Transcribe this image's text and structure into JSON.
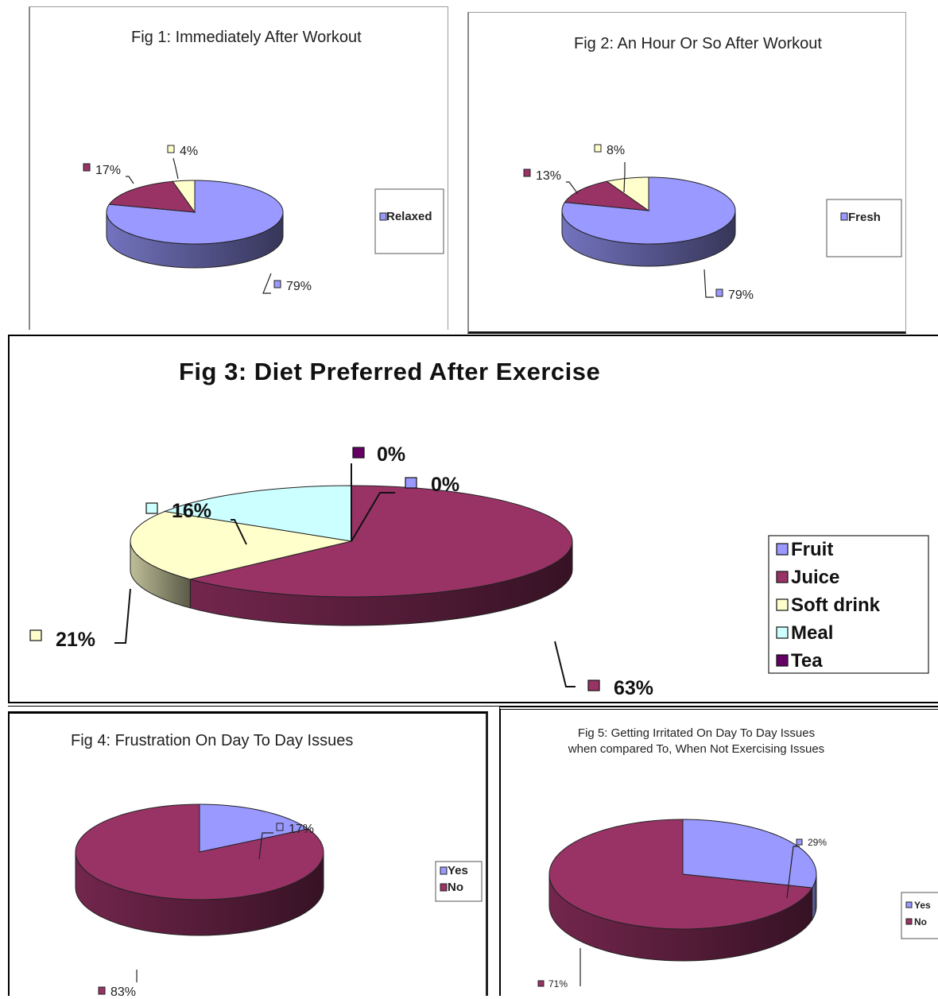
{
  "chart_data": [
    {
      "type": "pie",
      "title": "Fig 1: Immediately After Workout",
      "legend": [
        "Relaxed"
      ],
      "legend_position": "right",
      "slices": [
        {
          "label": "79%",
          "value": 79,
          "color": "#9999ff"
        },
        {
          "label": "17%",
          "value": 17,
          "color": "#993366"
        },
        {
          "label": "4%",
          "value": 4,
          "color": "#ffffcc"
        }
      ]
    },
    {
      "type": "pie",
      "title": "Fig 2: An Hour Or So After Workout",
      "legend": [
        "Fresh"
      ],
      "legend_position": "right",
      "slices": [
        {
          "label": "79%",
          "value": 79,
          "color": "#9999ff"
        },
        {
          "label": "13%",
          "value": 13,
          "color": "#993366"
        },
        {
          "label": "8%",
          "value": 8,
          "color": "#ffffcc"
        }
      ]
    },
    {
      "type": "pie",
      "title": "Fig 3: Diet Preferred After Exercise",
      "legend": [
        "Fruit",
        "Juice",
        "Soft drink",
        "Meal",
        "Tea"
      ],
      "legend_position": "right",
      "slices": [
        {
          "name": "Fruit",
          "label": "0%",
          "value": 0,
          "color": "#9999ff"
        },
        {
          "name": "Juice",
          "label": "63%",
          "value": 63,
          "color": "#993366"
        },
        {
          "name": "Soft drink",
          "label": "21%",
          "value": 21,
          "color": "#ffffcc"
        },
        {
          "name": "Meal",
          "label": "16%",
          "value": 16,
          "color": "#ccffff"
        },
        {
          "name": "Tea",
          "label": "0%",
          "value": 0,
          "color": "#660066"
        }
      ]
    },
    {
      "type": "pie",
      "title": "Fig 4: Frustration On Day To Day Issues",
      "legend": [
        "Yes",
        "No"
      ],
      "legend_position": "right",
      "slices": [
        {
          "name": "Yes",
          "label": "17%",
          "value": 17,
          "color": "#9999ff"
        },
        {
          "name": "No",
          "label": "83%",
          "value": 83,
          "color": "#993366"
        }
      ]
    },
    {
      "type": "pie",
      "title": "Fig 5: Getting Irritated On Day To Day Issues when compared To, When Not Exercising Issues",
      "title_lines": [
        "Fig 5: Getting Irritated On Day To Day Issues",
        "when compared To, When Not Exercising Issues"
      ],
      "legend": [
        "Yes",
        "No"
      ],
      "legend_position": "right",
      "slices": [
        {
          "name": "Yes",
          "label": "29%",
          "value": 29,
          "color": "#9999ff"
        },
        {
          "name": "No",
          "label": "71%",
          "value": 71,
          "color": "#993366"
        }
      ]
    }
  ]
}
